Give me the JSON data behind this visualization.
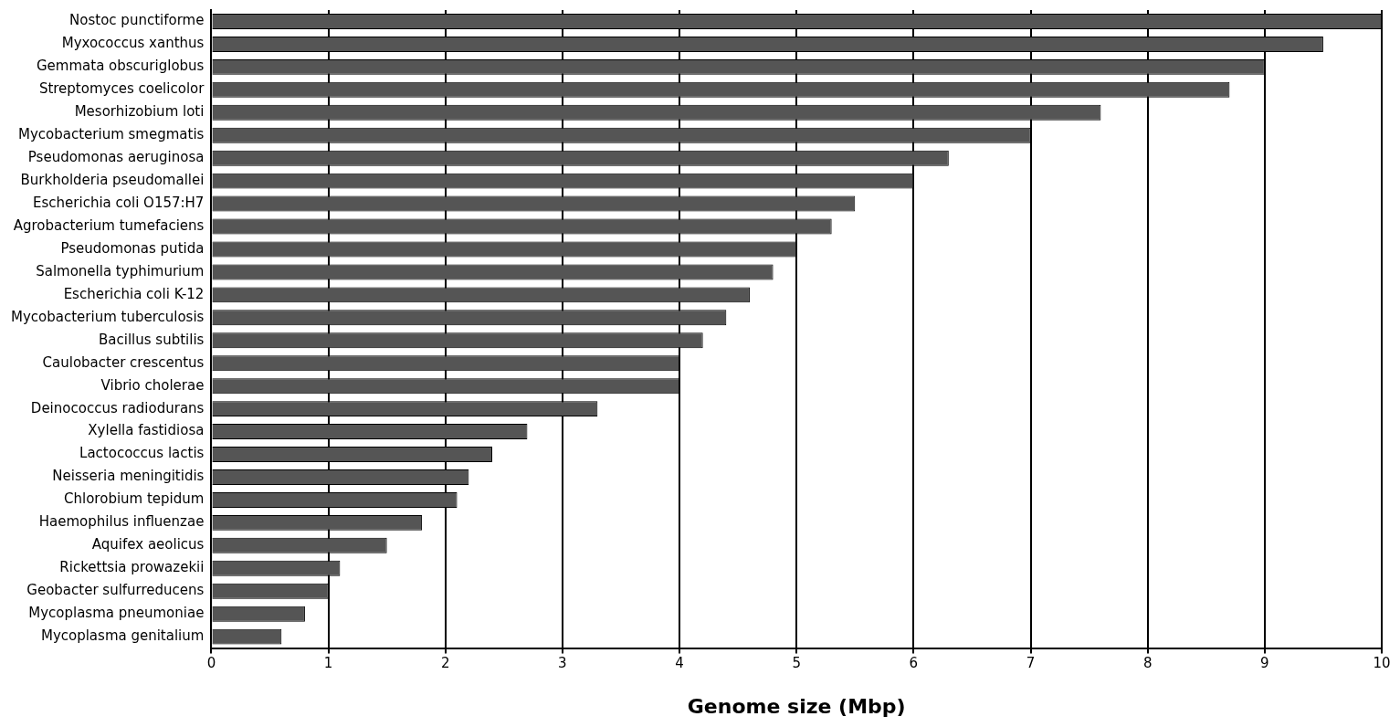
{
  "chart_data": {
    "type": "bar",
    "orientation": "horizontal",
    "xlabel": "Genome size (Mbp)",
    "categories": [
      "Nostoc punctiforme",
      "Myxococcus xanthus",
      "Gemmata obscuriglobus",
      "Streptomyces coelicolor",
      "Mesorhizobium loti",
      "Mycobacterium smegmatis",
      "Pseudomonas aeruginosa",
      "Burkholderia pseudomallei",
      "Escherichia coli O157:H7",
      "Agrobacterium tumefaciens",
      "Pseudomonas putida",
      "Salmonella typhimurium",
      "Escherichia coli K-12",
      "Mycobacterium tuberculosis",
      "Bacillus subtilis",
      "Caulobacter crescentus",
      "Vibrio cholerae",
      "Deinococcus radiodurans",
      "Xylella fastidiosa",
      "Lactococcus lactis",
      "Neisseria meningitidis",
      "Chlorobium tepidum",
      "Haemophilus influenzae",
      "Aquifex aeolicus",
      "Rickettsia prowazekii",
      "Geobacter sulfurreducens",
      "Mycoplasma pneumoniae",
      "Mycoplasma genitalium"
    ],
    "values": [
      10.0,
      9.5,
      9.0,
      8.7,
      7.6,
      7.0,
      6.3,
      6.0,
      5.5,
      5.3,
      5.0,
      4.8,
      4.6,
      4.4,
      4.2,
      4.0,
      4.0,
      3.3,
      2.7,
      2.4,
      2.2,
      2.1,
      1.8,
      1.5,
      1.1,
      1.0,
      0.8,
      0.6
    ],
    "color": "#555555",
    "xlim": [
      0,
      10
    ],
    "xticks": [
      0,
      1,
      2,
      3,
      4,
      5,
      6,
      7,
      8,
      9,
      10
    ],
    "grid": "x",
    "legend": false
  }
}
